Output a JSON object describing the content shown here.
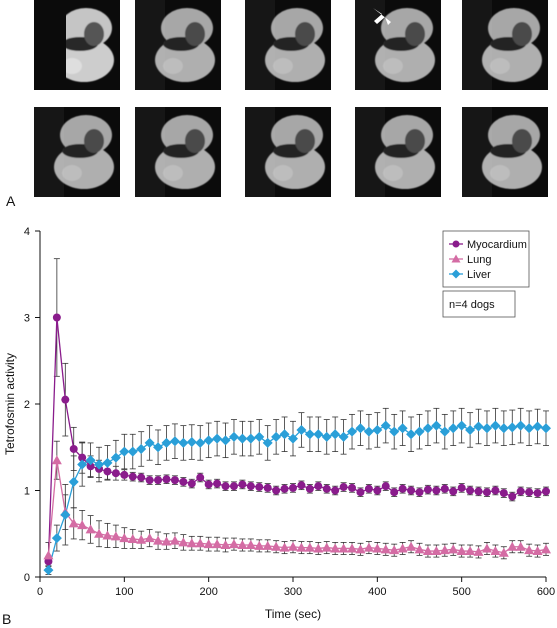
{
  "panel_a": {
    "letter": "A",
    "rows": [
      [
        "frame",
        "frame",
        "frame",
        "frame-arrow",
        "frame"
      ],
      [
        "frame",
        "frame",
        "frame",
        "frame",
        "frame"
      ]
    ]
  },
  "panel_b": {
    "letter": "B"
  },
  "colors": {
    "myocardium": "#8a1c8c",
    "lung": "#d46ca4",
    "liver": "#2a9fd8",
    "errorbar": "#333333"
  },
  "chart_data": {
    "type": "line",
    "xlabel": "Time (sec)",
    "ylabel": "Tetrofosmin activity",
    "xlim": [
      0,
      600
    ],
    "ylim": [
      0,
      4
    ],
    "xticks": [
      0,
      100,
      200,
      300,
      400,
      500,
      600
    ],
    "yticks": [
      0,
      1,
      2,
      3,
      4
    ],
    "grid": false,
    "legend_position": "top-right",
    "annotation": "n=4 dogs",
    "series": [
      {
        "name": "Myocardium",
        "marker": "circle",
        "x": [
          10,
          20,
          30,
          40,
          50,
          60,
          70,
          80,
          90,
          100,
          110,
          120,
          130,
          140,
          150,
          160,
          170,
          180,
          190,
          200,
          210,
          220,
          230,
          240,
          250,
          260,
          270,
          280,
          290,
          300,
          310,
          320,
          330,
          340,
          350,
          360,
          370,
          380,
          390,
          400,
          410,
          420,
          430,
          440,
          450,
          460,
          470,
          480,
          490,
          500,
          510,
          520,
          530,
          540,
          550,
          560,
          570,
          580,
          590,
          600
        ],
        "y": [
          0.18,
          3.0,
          2.05,
          1.48,
          1.38,
          1.28,
          1.25,
          1.22,
          1.2,
          1.18,
          1.16,
          1.15,
          1.12,
          1.12,
          1.13,
          1.12,
          1.1,
          1.08,
          1.15,
          1.07,
          1.08,
          1.05,
          1.05,
          1.07,
          1.05,
          1.04,
          1.03,
          1.0,
          1.02,
          1.03,
          1.06,
          1.02,
          1.05,
          1.02,
          1.0,
          1.04,
          1.03,
          0.98,
          1.02,
          1.0,
          1.05,
          0.98,
          1.02,
          1.0,
          0.98,
          1.01,
          1.0,
          1.02,
          0.99,
          1.03,
          1.0,
          0.99,
          0.98,
          1.0,
          0.97,
          0.93,
          0.99,
          0.98,
          0.97,
          0.99
        ],
        "err": [
          0.06,
          0.68,
          0.42,
          0.25,
          0.18,
          0.12,
          0.1,
          0.09,
          0.08,
          0.06,
          0.05,
          0.05,
          0.05,
          0.05,
          0.05,
          0.05,
          0.05,
          0.05,
          0.05,
          0.05,
          0.05,
          0.05,
          0.05,
          0.05,
          0.05,
          0.05,
          0.05,
          0.05,
          0.05,
          0.05,
          0.05,
          0.05,
          0.05,
          0.05,
          0.05,
          0.05,
          0.05,
          0.05,
          0.05,
          0.05,
          0.05,
          0.05,
          0.05,
          0.05,
          0.05,
          0.05,
          0.05,
          0.05,
          0.05,
          0.05,
          0.05,
          0.05,
          0.05,
          0.05,
          0.05,
          0.05,
          0.05,
          0.05,
          0.05,
          0.05
        ]
      },
      {
        "name": "Lung",
        "marker": "triangle",
        "x": [
          10,
          20,
          30,
          40,
          50,
          60,
          70,
          80,
          90,
          100,
          110,
          120,
          130,
          140,
          150,
          160,
          170,
          180,
          190,
          200,
          210,
          220,
          230,
          240,
          250,
          260,
          270,
          280,
          290,
          300,
          310,
          320,
          330,
          340,
          350,
          360,
          370,
          380,
          390,
          400,
          410,
          420,
          430,
          440,
          450,
          460,
          470,
          480,
          490,
          500,
          510,
          520,
          530,
          540,
          550,
          560,
          570,
          580,
          590,
          600
        ],
        "y": [
          0.25,
          1.35,
          0.75,
          0.62,
          0.6,
          0.55,
          0.5,
          0.48,
          0.47,
          0.45,
          0.44,
          0.43,
          0.45,
          0.42,
          0.41,
          0.42,
          0.4,
          0.39,
          0.39,
          0.38,
          0.38,
          0.37,
          0.38,
          0.37,
          0.37,
          0.36,
          0.36,
          0.35,
          0.34,
          0.35,
          0.34,
          0.34,
          0.33,
          0.34,
          0.33,
          0.33,
          0.33,
          0.32,
          0.34,
          0.33,
          0.32,
          0.31,
          0.33,
          0.35,
          0.32,
          0.3,
          0.3,
          0.31,
          0.32,
          0.3,
          0.3,
          0.29,
          0.33,
          0.3,
          0.28,
          0.35,
          0.35,
          0.31,
          0.3,
          0.32
        ],
        "err": [
          0.15,
          0.22,
          0.2,
          0.18,
          0.17,
          0.16,
          0.15,
          0.14,
          0.13,
          0.12,
          0.11,
          0.1,
          0.1,
          0.1,
          0.09,
          0.09,
          0.09,
          0.08,
          0.08,
          0.08,
          0.08,
          0.08,
          0.07,
          0.07,
          0.07,
          0.07,
          0.07,
          0.07,
          0.07,
          0.07,
          0.07,
          0.07,
          0.07,
          0.07,
          0.07,
          0.07,
          0.07,
          0.07,
          0.07,
          0.07,
          0.07,
          0.07,
          0.07,
          0.07,
          0.07,
          0.07,
          0.07,
          0.07,
          0.07,
          0.07,
          0.07,
          0.07,
          0.07,
          0.07,
          0.07,
          0.07,
          0.07,
          0.07,
          0.07,
          0.07
        ]
      },
      {
        "name": "Liver",
        "marker": "diamond",
        "x": [
          10,
          20,
          30,
          40,
          50,
          60,
          70,
          80,
          90,
          100,
          110,
          120,
          130,
          140,
          150,
          160,
          170,
          180,
          190,
          200,
          210,
          220,
          230,
          240,
          250,
          260,
          270,
          280,
          290,
          300,
          310,
          320,
          330,
          340,
          350,
          360,
          370,
          380,
          390,
          400,
          410,
          420,
          430,
          440,
          450,
          460,
          470,
          480,
          490,
          500,
          510,
          520,
          530,
          540,
          550,
          560,
          570,
          580,
          590,
          600
        ],
        "y": [
          0.08,
          0.45,
          0.72,
          1.1,
          1.3,
          1.35,
          1.3,
          1.32,
          1.38,
          1.45,
          1.45,
          1.48,
          1.55,
          1.5,
          1.55,
          1.57,
          1.55,
          1.56,
          1.55,
          1.58,
          1.6,
          1.58,
          1.62,
          1.6,
          1.6,
          1.62,
          1.55,
          1.62,
          1.65,
          1.6,
          1.7,
          1.65,
          1.65,
          1.62,
          1.65,
          1.62,
          1.68,
          1.72,
          1.68,
          1.7,
          1.75,
          1.68,
          1.72,
          1.65,
          1.68,
          1.72,
          1.75,
          1.68,
          1.72,
          1.75,
          1.7,
          1.74,
          1.72,
          1.75,
          1.72,
          1.73,
          1.75,
          1.72,
          1.74,
          1.72
        ],
        "err": [
          0.05,
          0.15,
          0.35,
          0.3,
          0.25,
          0.2,
          0.2,
          0.2,
          0.2,
          0.2,
          0.2,
          0.2,
          0.2,
          0.2,
          0.2,
          0.2,
          0.2,
          0.2,
          0.2,
          0.2,
          0.2,
          0.2,
          0.2,
          0.2,
          0.2,
          0.2,
          0.2,
          0.2,
          0.2,
          0.2,
          0.2,
          0.2,
          0.2,
          0.2,
          0.2,
          0.2,
          0.2,
          0.2,
          0.2,
          0.2,
          0.2,
          0.2,
          0.2,
          0.2,
          0.2,
          0.2,
          0.2,
          0.2,
          0.2,
          0.2,
          0.2,
          0.2,
          0.2,
          0.2,
          0.2,
          0.2,
          0.2,
          0.2,
          0.2,
          0.2
        ]
      }
    ]
  }
}
